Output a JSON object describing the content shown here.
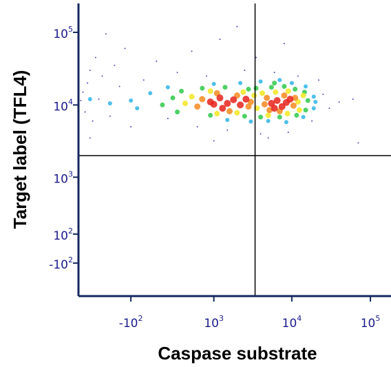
{
  "chart_data": {
    "type": "scatter",
    "x_label": "Caspase substrate",
    "y_label": "Target label (TFL4)",
    "xscale": "biexponential",
    "yscale": "biexponential",
    "xlim": [
      -860,
      183000
    ],
    "ylim": [
      -450,
      250000
    ],
    "xticks": [
      {
        "value": -100,
        "label": "-10",
        "power": "2"
      },
      {
        "value": 1000,
        "label": "10",
        "power": "3"
      },
      {
        "value": 10000,
        "label": "10",
        "power": "4"
      },
      {
        "value": 100000,
        "label": "10",
        "power": "5"
      }
    ],
    "yticks": [
      {
        "value": -100,
        "label": "-10",
        "power": "2"
      },
      {
        "value": 100,
        "label": "10",
        "power": "2"
      },
      {
        "value": 1000,
        "label": "10",
        "power": "3"
      },
      {
        "value": 10000,
        "label": "10",
        "power": "4"
      },
      {
        "value": 100000,
        "label": "10",
        "power": "5"
      }
    ],
    "gates": {
      "x": 3400,
      "y": 2000
    },
    "series": [
      {
        "color": "#2a2aa8",
        "size": 1,
        "x": [
          -800,
          -750,
          -700,
          -650,
          -600,
          -550,
          -500,
          -450,
          -400,
          -300,
          -250,
          -200,
          -150,
          -100,
          0,
          100,
          200,
          300,
          500,
          600,
          800,
          1200,
          1500,
          2500,
          3500,
          4000,
          5000,
          6000,
          9000,
          12000,
          18000,
          25000,
          30000,
          40000,
          60000,
          70000,
          -350,
          2000,
          8000,
          -600,
          22000,
          1000
        ],
        "values": [
          11500,
          15000,
          8000,
          20000,
          30000,
          6000,
          45000,
          12000,
          25000,
          7000,
          35000,
          18000,
          60000,
          5000,
          22000,
          40000,
          6500,
          28000,
          55000,
          5000,
          25000,
          80000,
          4500,
          30000,
          45000,
          4000,
          3500,
          28000,
          4200,
          25000,
          6000,
          14000,
          9000,
          11000,
          12000,
          3000,
          95000,
          120000,
          70000,
          3500,
          22000,
          3200
        ]
      },
      {
        "color": "#2fb4e6",
        "size": 3,
        "x": [
          -100,
          50,
          -50,
          200,
          1000,
          2200,
          4000,
          7000,
          10000,
          15000,
          19000,
          19000,
          14000,
          8500,
          5000,
          3000,
          1500,
          -300,
          -600,
          20000
        ],
        "values": [
          11500,
          14500,
          9000,
          17500,
          19500,
          20000,
          21000,
          22000,
          20000,
          18000,
          13000,
          9000,
          6800,
          5800,
          6000,
          5900,
          6200,
          10500,
          12000,
          11000
        ]
      },
      {
        "color": "#2ec84a",
        "size": 3.5,
        "x": [
          250,
          150,
          350,
          700,
          1400,
          2800,
          3500,
          5500,
          8000,
          11000,
          14500,
          16000,
          15000,
          11500,
          7000,
          4000,
          2500,
          900,
          300,
          6000
        ],
        "values": [
          12500,
          10000,
          15500,
          17000,
          17500,
          16500,
          17000,
          17500,
          18000,
          16500,
          15000,
          11500,
          8500,
          7200,
          6800,
          6800,
          7000,
          7200,
          8000,
          20000
        ]
      },
      {
        "color": "#f2e620",
        "size": 4,
        "x": [
          500,
          400,
          900,
          2400,
          3300,
          3600,
          1100,
          2000,
          4200,
          6200,
          9000,
          12000,
          12500,
          8800,
          5000,
          14000
        ],
        "values": [
          13000,
          10500,
          15500,
          15000,
          13500,
          9000,
          7600,
          7800,
          14500,
          15000,
          15500,
          11000,
          8500,
          7600,
          7200,
          13500
        ]
      },
      {
        "color": "#f58a1e",
        "size": 4.5,
        "x": [
          700,
          1100,
          2000,
          2800,
          600,
          1600,
          3000,
          4800,
          5200,
          8000,
          10500,
          7000,
          11000,
          4500
        ],
        "values": [
          12000,
          14500,
          13500,
          9500,
          9500,
          8200,
          11000,
          12500,
          8500,
          13500,
          9800,
          8200,
          12500,
          10200
        ]
      },
      {
        "color": "#e8221c",
        "size": 5,
        "x": [
          900,
          1200,
          1500,
          1800,
          2200,
          1300,
          2600,
          1000,
          5500,
          6500,
          7500,
          8500,
          6000,
          9500
        ],
        "values": [
          11000,
          12500,
          10500,
          11800,
          10000,
          9000,
          12000,
          10200,
          10500,
          11500,
          9500,
          10800,
          9000,
          12000
        ]
      }
    ]
  }
}
